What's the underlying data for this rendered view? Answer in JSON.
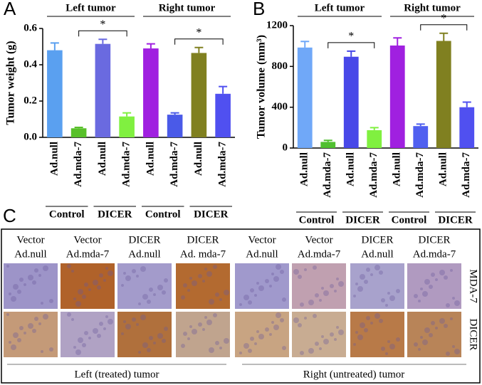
{
  "chart_data": [
    {
      "type": "bar",
      "panel": "A",
      "ylabel": "Tumor weight (g)",
      "categories": [
        "Ad.null",
        "Ad.mda-7",
        "Ad.null",
        "Ad.mda-7",
        "Ad.null",
        "Ad.mda-7",
        "Ad.null",
        "Ad.mda-7"
      ],
      "values": [
        0.48,
        0.05,
        0.515,
        0.115,
        0.49,
        0.125,
        0.465,
        0.24
      ],
      "errors": [
        0.04,
        0.005,
        0.025,
        0.02,
        0.025,
        0.01,
        0.03,
        0.04
      ],
      "colors": [
        "#5aa0f0",
        "#58c02a",
        "#6a6ae0",
        "#80f040",
        "#a020e0",
        "#4a5ae8",
        "#808020",
        "#5050f0"
      ],
      "ylim": [
        0,
        0.6
      ],
      "yticks": [
        {
          "value": 0,
          "label": "0.0"
        },
        0.2,
        0.4,
        0.6
      ],
      "top_groups": [
        "Left tumor",
        "Right tumor"
      ],
      "bottom_groups": [
        "Control",
        "DICER",
        "Control",
        "DICER"
      ],
      "annotations": [
        "*",
        "*"
      ]
    },
    {
      "type": "bar",
      "panel": "B",
      "ylabel": "Tumor volume (mm³)",
      "categories": [
        "Ad.null",
        "Ad.mda-7",
        "Ad.null",
        "Ad.mda-7",
        "Ad.null",
        "Ad.mda-7",
        "Ad.null",
        "Ad.mda-7"
      ],
      "values": [
        985,
        60,
        895,
        175,
        1005,
        215,
        1050,
        400
      ],
      "errors": [
        60,
        15,
        55,
        25,
        75,
        20,
        75,
        50
      ],
      "colors": [
        "#70a8f8",
        "#50c030",
        "#4848e8",
        "#80f040",
        "#a020e0",
        "#5060f0",
        "#808020",
        "#5050f0"
      ],
      "ylim": [
        0,
        1200
      ],
      "yticks": [
        0,
        400,
        800,
        1200
      ],
      "top_groups": [
        "Left tumor",
        "Right tumor"
      ],
      "bottom_groups": [
        "Control",
        "DICER",
        "Control",
        "DICER"
      ],
      "annotations": [
        "*",
        "*"
      ]
    }
  ],
  "panel_c": {
    "label": "C",
    "columns": [
      [
        "Vector",
        "Ad.null"
      ],
      [
        "Vector",
        "Ad.mda-7"
      ],
      [
        "DICER",
        "Ad.null"
      ],
      [
        "DICER",
        "Ad. mda-7"
      ],
      [
        "Vector",
        "Ad.null"
      ],
      [
        "Vector",
        "Ad.mda-7"
      ],
      [
        "DICER",
        "Ad.null"
      ],
      [
        "DICER",
        "Ad.mda-7"
      ]
    ],
    "rows": [
      "MDA-7",
      "DICER"
    ],
    "footer": [
      "Left (treated) tumor",
      "Right (untreated) tumor"
    ]
  }
}
